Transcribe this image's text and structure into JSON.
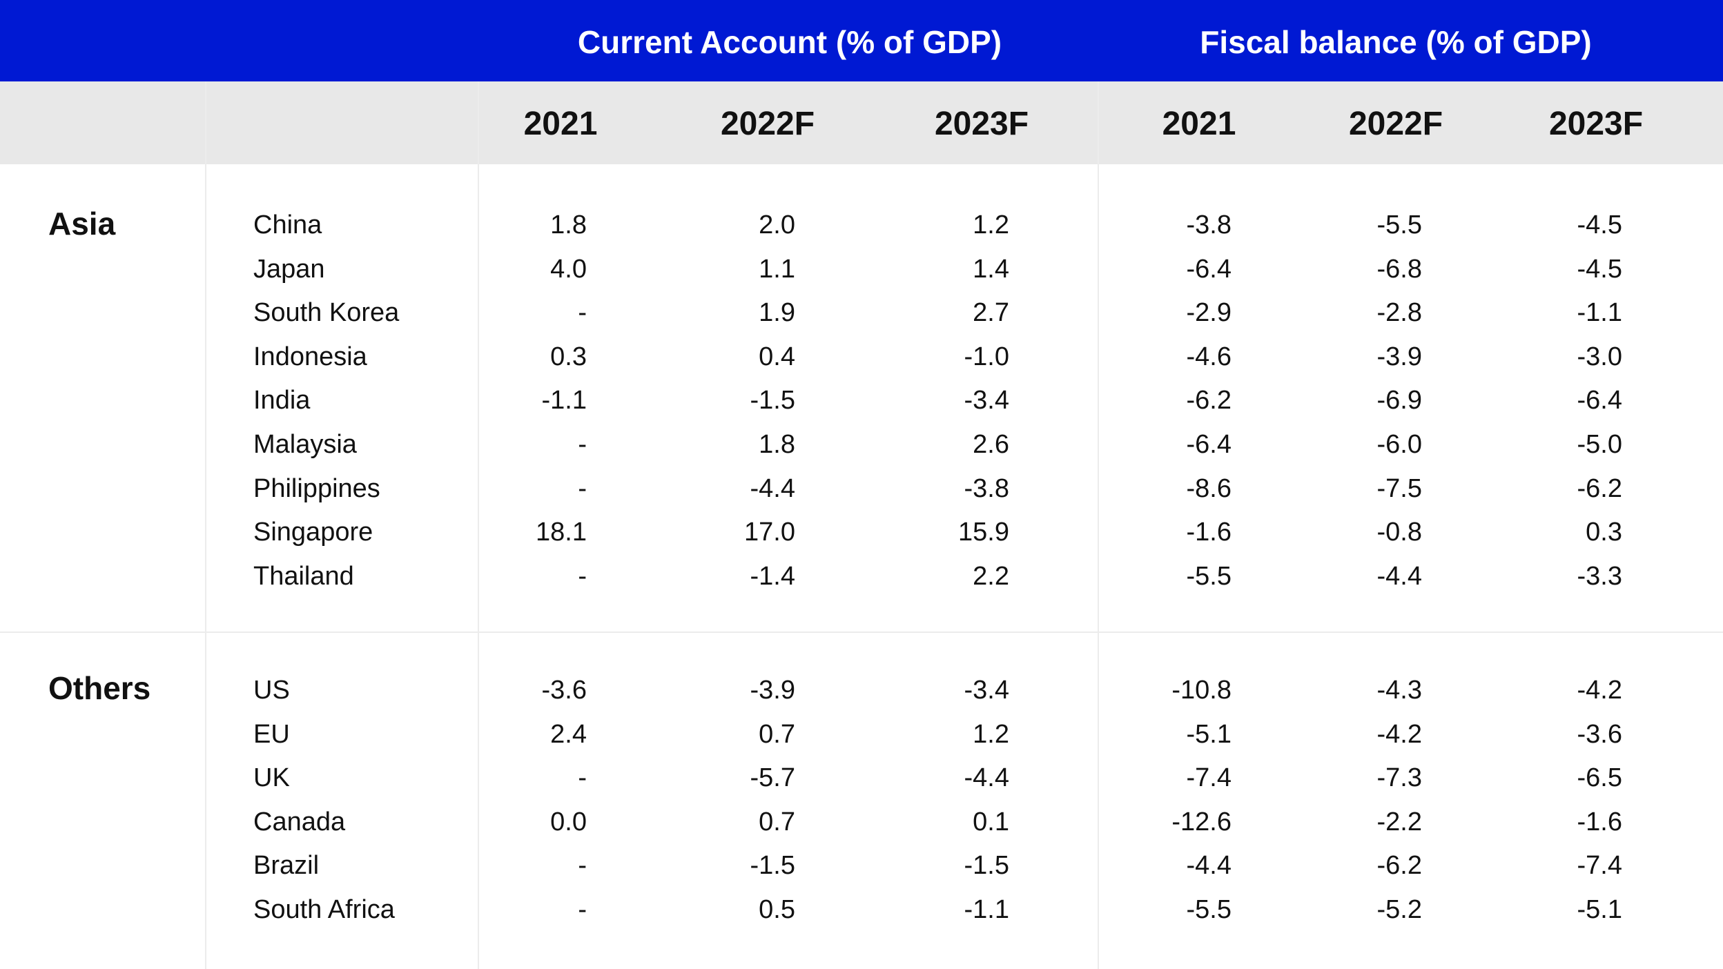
{
  "chart_data": {
    "type": "table",
    "column_groups": [
      {
        "title": "Current Account (% of GDP)",
        "years": [
          "2021",
          "2022F",
          "2023F"
        ]
      },
      {
        "title": "Fiscal balance (% of GDP)",
        "years": [
          "2021",
          "2022F",
          "2023F"
        ]
      }
    ],
    "groups": [
      {
        "name": "Asia",
        "rows": [
          {
            "country": "China",
            "current_account": [
              "1.8",
              "2.0",
              "1.2"
            ],
            "fiscal_balance": [
              "-3.8",
              "-5.5",
              "-4.5"
            ]
          },
          {
            "country": "Japan",
            "current_account": [
              "4.0",
              "1.1",
              "1.4"
            ],
            "fiscal_balance": [
              "-6.4",
              "-6.8",
              "-4.5"
            ]
          },
          {
            "country": "South Korea",
            "current_account": [
              "-",
              "1.9",
              "2.7"
            ],
            "fiscal_balance": [
              "-2.9",
              "-2.8",
              "-1.1"
            ]
          },
          {
            "country": "Indonesia",
            "current_account": [
              "0.3",
              "0.4",
              "-1.0"
            ],
            "fiscal_balance": [
              "-4.6",
              "-3.9",
              "-3.0"
            ]
          },
          {
            "country": "India",
            "current_account": [
              "-1.1",
              "-1.5",
              "-3.4"
            ],
            "fiscal_balance": [
              "-6.2",
              "-6.9",
              "-6.4"
            ]
          },
          {
            "country": "Malaysia",
            "current_account": [
              "-",
              "1.8",
              "2.6"
            ],
            "fiscal_balance": [
              "-6.4",
              "-6.0",
              "-5.0"
            ]
          },
          {
            "country": "Philippines",
            "current_account": [
              "-",
              "-4.4",
              "-3.8"
            ],
            "fiscal_balance": [
              "-8.6",
              "-7.5",
              "-6.2"
            ]
          },
          {
            "country": "Singapore",
            "current_account": [
              "18.1",
              "17.0",
              "15.9"
            ],
            "fiscal_balance": [
              "-1.6",
              "-0.8",
              "0.3"
            ]
          },
          {
            "country": "Thailand",
            "current_account": [
              "-",
              "-1.4",
              "2.2"
            ],
            "fiscal_balance": [
              "-5.5",
              "-4.4",
              "-3.3"
            ]
          }
        ]
      },
      {
        "name": "Others",
        "rows": [
          {
            "country": "US",
            "current_account": [
              "-3.6",
              "-3.9",
              "-3.4"
            ],
            "fiscal_balance": [
              "-10.8",
              "-4.3",
              "-4.2"
            ]
          },
          {
            "country": "EU",
            "current_account": [
              "2.4",
              "0.7",
              "1.2"
            ],
            "fiscal_balance": [
              "-5.1",
              "-4.2",
              "-3.6"
            ]
          },
          {
            "country": "UK",
            "current_account": [
              "-",
              "-5.7",
              "-4.4"
            ],
            "fiscal_balance": [
              "-7.4",
              "-7.3",
              "-6.5"
            ]
          },
          {
            "country": "Canada",
            "current_account": [
              "0.0",
              "0.7",
              "0.1"
            ],
            "fiscal_balance": [
              "-12.6",
              "-2.2",
              "-1.6"
            ]
          },
          {
            "country": "Brazil",
            "current_account": [
              "-",
              "-1.5",
              "-1.5"
            ],
            "fiscal_balance": [
              "-4.4",
              "-6.2",
              "-7.4"
            ]
          },
          {
            "country": "South Africa",
            "current_account": [
              "-",
              "0.5",
              "-1.1"
            ],
            "fiscal_balance": [
              "-5.5",
              "-5.2",
              "-5.1"
            ]
          }
        ]
      }
    ]
  },
  "colors": {
    "band": "#0019d3",
    "header_row": "#e8e8e8",
    "grid": "#ececec",
    "text": "#111111"
  }
}
